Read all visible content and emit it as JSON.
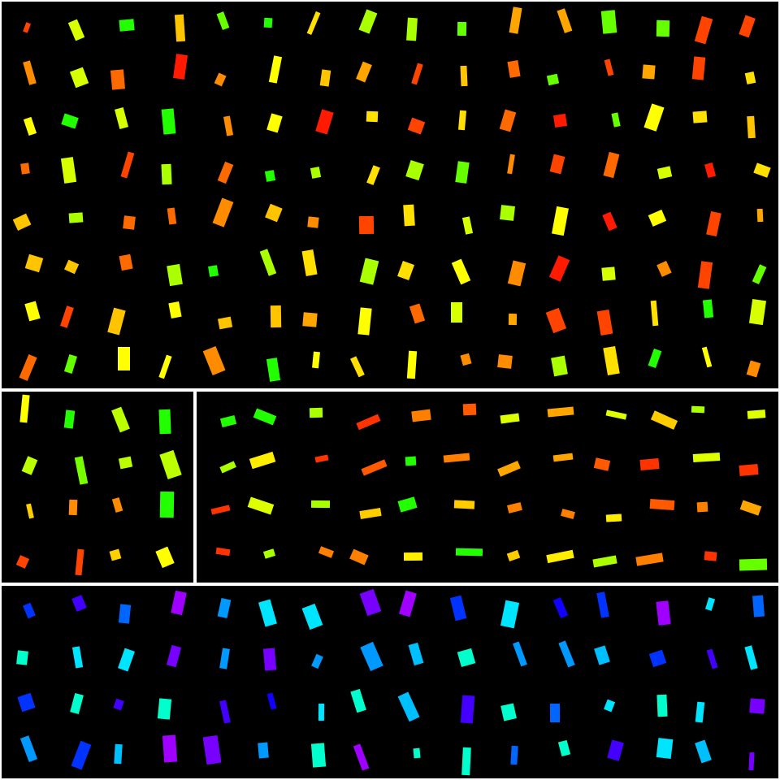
{
  "background": "#000000",
  "separator_color": "#ffffff",
  "panels": [
    {
      "id": "top",
      "theme": "warm",
      "rows": 8,
      "cols": 16,
      "orientation": "vertical",
      "palette": [
        "#ff1a00",
        "#ff4400",
        "#ff6a00",
        "#ff8c00",
        "#ffa500",
        "#ffc400",
        "#ffe000",
        "#ffff00",
        "#d8ff00",
        "#aaff00",
        "#66ff00",
        "#22ff00"
      ]
    },
    {
      "id": "middle-left",
      "theme": "warm",
      "rows": 4,
      "cols": 4,
      "orientation": "vertical",
      "palette": [
        "#ff4400",
        "#ff8c00",
        "#ffa500",
        "#ffd000",
        "#ffff00",
        "#bbff00",
        "#77ff00",
        "#22ff00"
      ]
    },
    {
      "id": "middle-right",
      "theme": "warm",
      "rows": 4,
      "cols": 12,
      "orientation": "horizontal",
      "palette": [
        "#ff3300",
        "#ff5a00",
        "#ff8000",
        "#ffa500",
        "#ffcc00",
        "#ffee00",
        "#ddff00",
        "#aaff00",
        "#66ff00",
        "#22ff00"
      ]
    },
    {
      "id": "bottom",
      "theme": "cool",
      "rows": 4,
      "cols": 16,
      "orientation": "vertical",
      "palette": [
        "#00e5ff",
        "#00bfff",
        "#0099ff",
        "#0066ff",
        "#0033ff",
        "#1100ff",
        "#4400ff",
        "#7700ff",
        "#a000ff",
        "#00ffcc"
      ]
    }
  ]
}
